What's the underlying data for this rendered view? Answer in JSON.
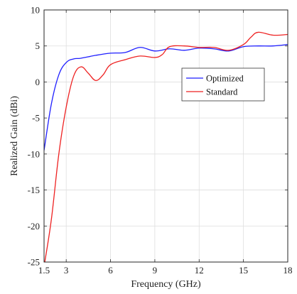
{
  "chart_data": {
    "type": "line",
    "xlabel": "Frequency (GHz)",
    "ylabel": "Realized Gain (dBi)",
    "xlim": [
      1.5,
      18
    ],
    "ylim": [
      -25,
      10
    ],
    "xticks": [
      1.5,
      3,
      6,
      9,
      12,
      15,
      18
    ],
    "xtick_labels": [
      "1.5",
      "3",
      "6",
      "9",
      "12",
      "15",
      "18"
    ],
    "yticks": [
      -25,
      -20,
      -15,
      -10,
      -5,
      0,
      5,
      10
    ],
    "ytick_labels": [
      "-25",
      "-20",
      "-15",
      "-10",
      "-5",
      "0",
      "5",
      "10"
    ],
    "grid": true,
    "legend_position": "right, upper-middle",
    "series": [
      {
        "name": "Optimized",
        "color": "#1f1fff",
        "x": [
          1.5,
          2.0,
          2.5,
          3.0,
          3.5,
          4.0,
          5.0,
          6.0,
          7.0,
          8.0,
          9.0,
          10.0,
          11.0,
          12.0,
          13.0,
          14.0,
          15.0,
          16.0,
          17.0,
          18.0
        ],
        "y": [
          -9.5,
          -3.0,
          1.0,
          2.7,
          3.2,
          3.3,
          3.7,
          4.0,
          4.1,
          4.8,
          4.3,
          4.6,
          4.4,
          4.7,
          4.6,
          4.3,
          4.9,
          5.0,
          5.0,
          5.2
        ]
      },
      {
        "name": "Standard",
        "color": "#ee2222",
        "x": [
          1.55,
          2.0,
          2.5,
          3.0,
          3.5,
          4.0,
          4.5,
          5.0,
          5.5,
          6.0,
          7.0,
          8.0,
          9.0,
          9.5,
          10.0,
          11.0,
          12.0,
          13.0,
          14.0,
          15.0,
          15.5,
          16.0,
          17.0,
          18.0
        ],
        "y": [
          -25.0,
          -19.0,
          -10.0,
          -3.5,
          0.8,
          2.1,
          1.2,
          0.2,
          1.0,
          2.4,
          3.1,
          3.6,
          3.4,
          3.8,
          4.9,
          5.0,
          4.8,
          4.8,
          4.4,
          5.2,
          6.2,
          6.9,
          6.5,
          6.6
        ]
      }
    ]
  }
}
